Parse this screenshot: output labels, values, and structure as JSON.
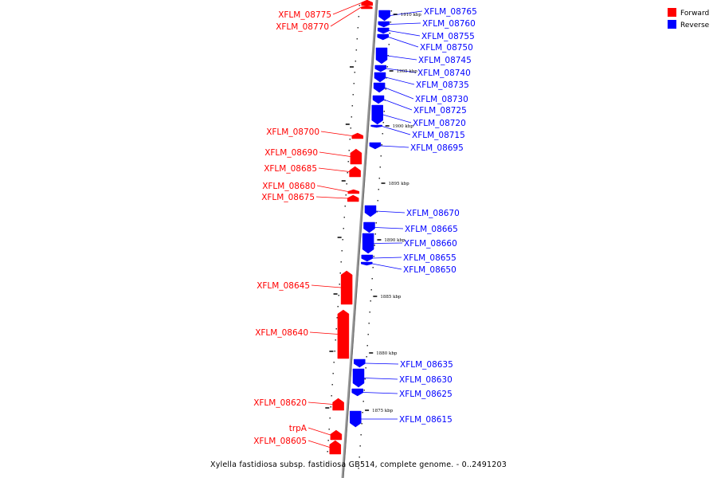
{
  "caption": "Xylella fastidiosa subsp. fastidiosa GB514, complete genome. - 0..2491203",
  "legend": [
    {
      "label": "Forward",
      "color": "#ff0000"
    },
    {
      "label": "Reverse",
      "color": "#0000ff"
    }
  ],
  "colors": {
    "forward": "#ff0000",
    "reverse": "#0000ff",
    "axis": "#999999"
  },
  "ticks": [
    {
      "label": "1910 kbp"
    },
    {
      "label": "1905 kbp"
    },
    {
      "label": "1900 kbp"
    },
    {
      "label": "1895 kbp"
    },
    {
      "label": "1890 kbp"
    },
    {
      "label": "1885 kbp"
    },
    {
      "label": "1880 kbp"
    },
    {
      "label": "1875 kbp"
    }
  ],
  "genes": [
    {
      "label": "XFLM_08775",
      "strand": "forward"
    },
    {
      "label": "XFLM_08770",
      "strand": "forward"
    },
    {
      "label": "XFLM_08765",
      "strand": "reverse"
    },
    {
      "label": "XFLM_08760",
      "strand": "reverse"
    },
    {
      "label": "XFLM_08755",
      "strand": "reverse"
    },
    {
      "label": "XFLM_08750",
      "strand": "reverse"
    },
    {
      "label": "XFLM_08745",
      "strand": "reverse"
    },
    {
      "label": "XFLM_08740",
      "strand": "reverse"
    },
    {
      "label": "XFLM_08735",
      "strand": "reverse"
    },
    {
      "label": "XFLM_08730",
      "strand": "reverse"
    },
    {
      "label": "XFLM_08725",
      "strand": "reverse"
    },
    {
      "label": "XFLM_08720",
      "strand": "reverse"
    },
    {
      "label": "XFLM_08715",
      "strand": "reverse"
    },
    {
      "label": "XFLM_08700",
      "strand": "forward"
    },
    {
      "label": "XFLM_08695",
      "strand": "reverse"
    },
    {
      "label": "XFLM_08690",
      "strand": "forward"
    },
    {
      "label": "XFLM_08685",
      "strand": "forward"
    },
    {
      "label": "XFLM_08680",
      "strand": "forward"
    },
    {
      "label": "XFLM_08675",
      "strand": "forward"
    },
    {
      "label": "XFLM_08670",
      "strand": "reverse"
    },
    {
      "label": "XFLM_08665",
      "strand": "reverse"
    },
    {
      "label": "XFLM_08660",
      "strand": "reverse"
    },
    {
      "label": "XFLM_08655",
      "strand": "reverse"
    },
    {
      "label": "XFLM_08650",
      "strand": "reverse"
    },
    {
      "label": "XFLM_08645",
      "strand": "forward"
    },
    {
      "label": "XFLM_08640",
      "strand": "forward"
    },
    {
      "label": "XFLM_08635",
      "strand": "reverse"
    },
    {
      "label": "XFLM_08630",
      "strand": "reverse"
    },
    {
      "label": "XFLM_08625",
      "strand": "reverse"
    },
    {
      "label": "XFLM_08620",
      "strand": "forward"
    },
    {
      "label": "XFLM_08615",
      "strand": "reverse"
    },
    {
      "label": "trpA",
      "strand": "forward"
    },
    {
      "label": "XFLM_08605",
      "strand": "forward"
    }
  ]
}
